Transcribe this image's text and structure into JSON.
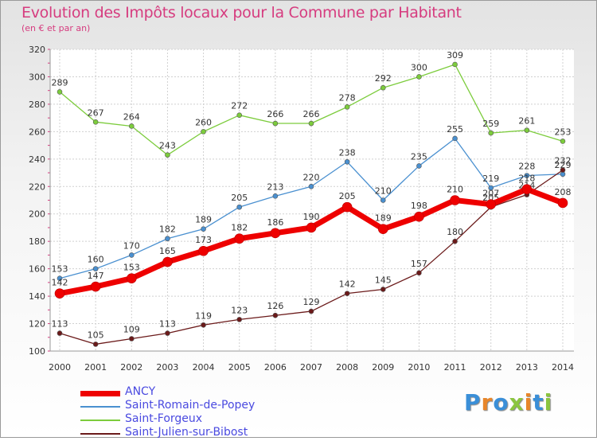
{
  "title": "Evolution des Impôts locaux pour la Commune par Habitant",
  "subtitle": "(en € et par an)",
  "logo_text": "Proxiti",
  "colors": {
    "title": "#d63c7f",
    "legend_text": "#4a4ae0"
  },
  "chart_data": {
    "type": "line",
    "categories": [
      "2000",
      "2001",
      "2002",
      "2003",
      "2004",
      "2005",
      "2006",
      "2007",
      "2008",
      "2009",
      "2010",
      "2011",
      "2012",
      "2013",
      "2014"
    ],
    "ylim": [
      100,
      320
    ],
    "yticks": [
      100,
      120,
      140,
      160,
      180,
      200,
      220,
      240,
      260,
      280,
      300,
      320
    ],
    "grid": true,
    "legend_position": "bottom-left",
    "series": [
      {
        "name": "Saint-Forgeux",
        "color": "#7ccc3c",
        "values": [
          289,
          267,
          264,
          243,
          260,
          272,
          266,
          266,
          278,
          292,
          300,
          309,
          259,
          261,
          253
        ],
        "labels": [
          "289",
          "267",
          "264",
          "243",
          "260",
          "272",
          "266",
          "266",
          "278",
          "292",
          "300",
          "309",
          "259",
          "261",
          "253"
        ]
      },
      {
        "name": "Saint-Romain-de-Popey",
        "color": "#4a90d0",
        "values": [
          153,
          160,
          170,
          182,
          189,
          205,
          213,
          220,
          238,
          210,
          235,
          255,
          219,
          228,
          229
        ],
        "labels": [
          "153",
          "160",
          "170",
          "182",
          "189",
          "205",
          "213",
          "220",
          "238",
          "210",
          "235",
          "255",
          "219",
          "228",
          "229"
        ]
      },
      {
        "name": "Saint-Julien-sur-Bibost",
        "color": "#6b1a1a",
        "values": [
          113,
          105,
          109,
          113,
          119,
          123,
          126,
          129,
          142,
          145,
          157,
          180,
          205,
          214,
          232
        ],
        "labels": [
          "113",
          "105",
          "109",
          "113",
          "119",
          "123",
          "126",
          "129",
          "142",
          "145",
          "157",
          "180",
          "205",
          "214",
          "232"
        ]
      },
      {
        "name": "ANCY",
        "color": "#ee0000",
        "values": [
          142,
          147,
          153,
          165,
          173,
          182,
          186,
          190,
          205,
          189,
          198,
          210,
          207,
          218,
          208
        ],
        "labels": [
          "142",
          "147",
          "153",
          "165",
          "173",
          "182",
          "186",
          "190",
          "205",
          "189",
          "198",
          "210",
          "207",
          "218",
          "208"
        ]
      }
    ],
    "legend": [
      "ANCY",
      "Saint-Romain-de-Popey",
      "Saint-Forgeux",
      "Saint-Julien-sur-Bibost"
    ]
  }
}
